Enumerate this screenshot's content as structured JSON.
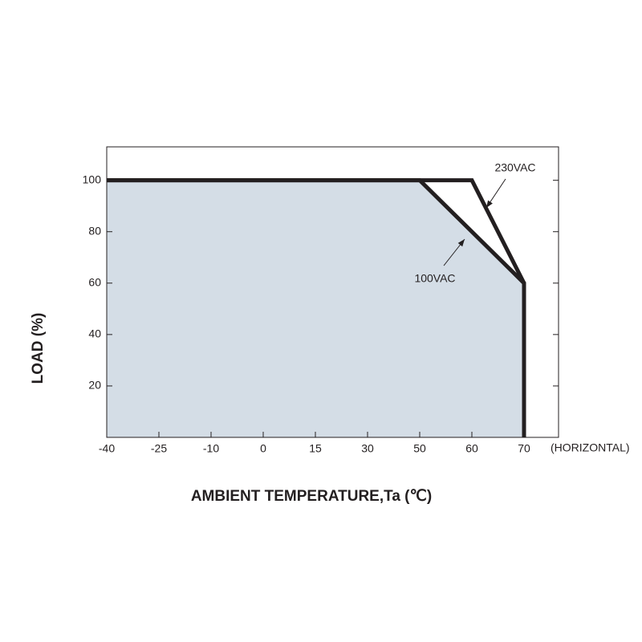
{
  "chart_data": {
    "type": "line",
    "x_label": "AMBIENT TEMPERATURE,Ta (℃)",
    "y_label": "LOAD (%)",
    "x_note": "(HORIZONTAL)",
    "xlim": [
      -40,
      77
    ],
    "ylim": [
      0,
      113
    ],
    "xticks": [
      -40,
      -25,
      -10,
      0,
      15,
      30,
      50,
      60,
      70
    ],
    "yticks": [
      20,
      40,
      60,
      80,
      100
    ],
    "fill_color": "#d4dde6",
    "series": [
      {
        "name": "230VAC",
        "color": "#231f20",
        "x": [
          -40,
          60,
          70,
          70
        ],
        "values": [
          100,
          100,
          60,
          0
        ]
      },
      {
        "name": "100VAC",
        "color": "#231f20",
        "x": [
          -40,
          50,
          70,
          70
        ],
        "values": [
          100,
          100,
          60,
          0
        ],
        "fill": true
      }
    ]
  }
}
